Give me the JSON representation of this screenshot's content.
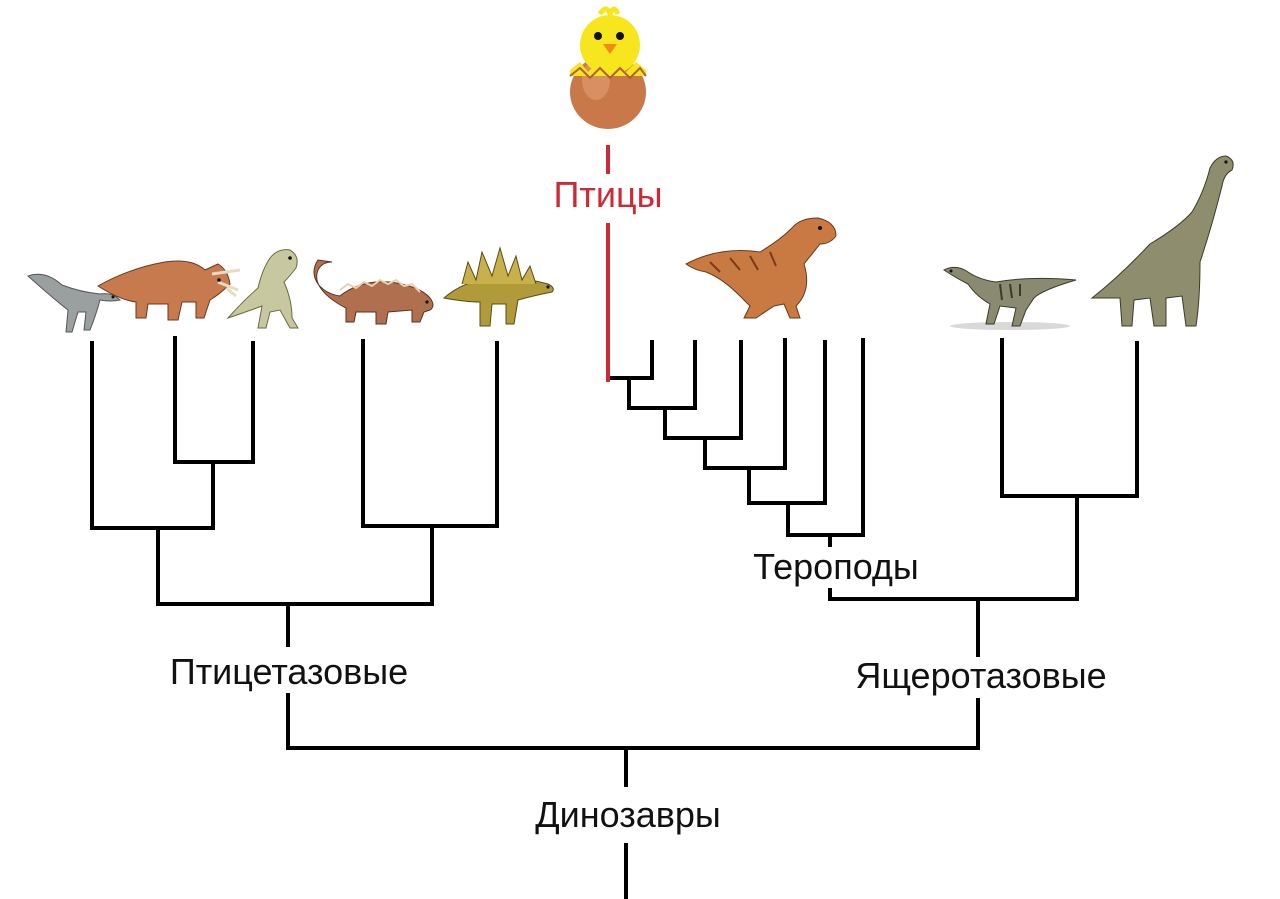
{
  "colors": {
    "birds_branch": "#cc2a36",
    "birds_label": "#cc2a36",
    "branch": "#000000"
  },
  "labels": {
    "root": "Динозавры",
    "ornithischia": "Птицетазовые",
    "saurischia": "Ящеротазовые",
    "theropods": "Тероподы",
    "birds": "Птицы"
  },
  "icons": {
    "birds": "chick-in-egg-icon",
    "ornithischia": [
      "iguanodont-icon",
      "triceratops-icon",
      "pachycephalosaurus-icon",
      "ankylosaurus-icon",
      "stegosaurus-icon"
    ],
    "theropods": [
      "tyrannosaurus-icon"
    ],
    "sauropodomorpha": [
      "prosauropod-icon",
      "brachiosaurus-icon"
    ]
  }
}
